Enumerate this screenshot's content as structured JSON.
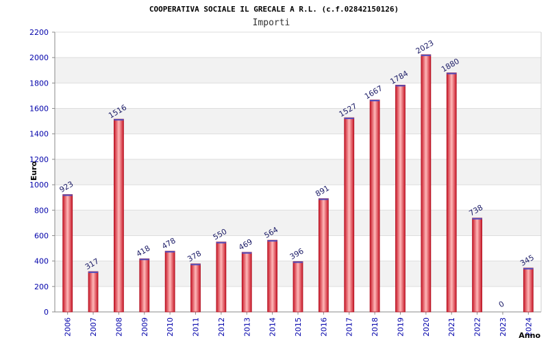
{
  "chart_data": {
    "type": "bar",
    "title": "COOPERATIVA SOCIALE IL GRECALE A R.L. (c.f.02842150126)",
    "subtitle": "Importi",
    "xlabel": "Anno",
    "ylabel": "Euro",
    "ylim": [
      0,
      2200
    ],
    "yticks": [
      0,
      200,
      400,
      600,
      800,
      1000,
      1200,
      1400,
      1600,
      1800,
      2000,
      2200
    ],
    "categories": [
      "2006",
      "2007",
      "2008",
      "2009",
      "2010",
      "2011",
      "2012",
      "2013",
      "2014",
      "2015",
      "2016",
      "2017",
      "2018",
      "2019",
      "2020",
      "2021",
      "2022",
      "2023",
      "2024"
    ],
    "values": [
      923,
      317,
      1516,
      418,
      478,
      378,
      550,
      469,
      564,
      396,
      891,
      1527,
      1667,
      1784,
      2023,
      1880,
      738,
      0,
      345
    ],
    "grid": true,
    "colors": {
      "bar_edge": "#b01020",
      "bar_light": "#ffb0b0",
      "bar_dark": "#d02030",
      "band": "#f2f2f2",
      "grid": "#dddddd",
      "axis": "#888888",
      "tick": "#0000aa"
    }
  }
}
